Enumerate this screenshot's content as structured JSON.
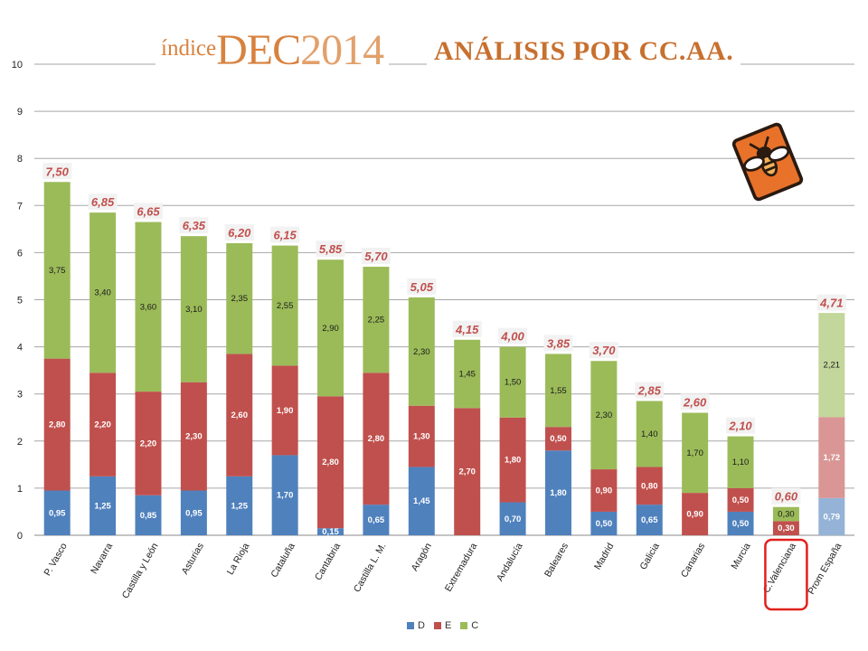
{
  "header": {
    "brand_prefix": "índice",
    "brand_main": "DEC",
    "brand_year": "2014",
    "title": "ANÁLISIS POR CC.AA."
  },
  "logo": {
    "icon": "bee-badge-icon",
    "color": "#e8722a"
  },
  "colors": {
    "D": "#4f81bd",
    "E": "#c0504d",
    "C": "#9bbb59",
    "D_light": "#95b3d7",
    "E_light": "#d99694",
    "C_light": "#c3d69b",
    "total_label": "#c0504d",
    "highlight": "#e2201b"
  },
  "chart_data": {
    "type": "bar",
    "stacked": true,
    "title": "ANÁLISIS POR CC.AA.",
    "xlabel": "",
    "ylabel": "",
    "ylim": [
      0,
      10
    ],
    "yticks": [
      "0",
      "1",
      "2",
      "3",
      "4",
      "5",
      "6",
      "7",
      "8",
      "9",
      "10"
    ],
    "grid": true,
    "legend_position": "bottom",
    "categories": [
      "P. Vasco",
      "Navarra",
      "Castilla y León",
      "Asturias",
      "La Rioja",
      "Cataluña",
      "Cantabria",
      "Castilla L. M.",
      "Aragón",
      "Extremadura",
      "Andalucía",
      "Baleares",
      "Madrid",
      "Galicia",
      "Canarias",
      "Murcia",
      "C.Valenciana",
      "Prom España"
    ],
    "series": [
      {
        "name": "D",
        "values": [
          0.95,
          1.25,
          0.85,
          0.95,
          1.25,
          1.7,
          0.15,
          0.65,
          1.45,
          0,
          0.7,
          1.8,
          0.5,
          0.65,
          0,
          0.5,
          0,
          0.79
        ],
        "labels": [
          "0,95",
          "1,25",
          "0,85",
          "0,95",
          "1,25",
          "1,70",
          "0,15",
          "0,65",
          "1,45",
          "",
          "0,70",
          "1,80",
          "0,50",
          "0,65",
          "",
          "0,50",
          "",
          "0,79"
        ]
      },
      {
        "name": "E",
        "values": [
          2.8,
          2.2,
          2.2,
          2.3,
          2.6,
          1.9,
          2.8,
          2.8,
          1.3,
          2.7,
          1.8,
          0.5,
          0.9,
          0.8,
          0.9,
          0.5,
          0.3,
          1.72
        ],
        "labels": [
          "2,80",
          "2,20",
          "2,20",
          "2,30",
          "2,60",
          "1,90",
          "2,80",
          "2,80",
          "1,30",
          "2,70",
          "1,80",
          "0,50",
          "0,90",
          "0,80",
          "0,90",
          "0,50",
          "0,30",
          "1,72"
        ]
      },
      {
        "name": "C",
        "values": [
          3.75,
          3.4,
          3.6,
          3.1,
          2.35,
          2.55,
          2.9,
          2.25,
          2.3,
          1.45,
          1.5,
          1.55,
          2.3,
          1.4,
          1.7,
          1.1,
          0.3,
          2.21
        ],
        "labels": [
          "3,75",
          "3,40",
          "3,60",
          "3,10",
          "2,35",
          "2,55",
          "2,90",
          "2,25",
          "2,30",
          "1,45",
          "1,50",
          "1,55",
          "2,30",
          "1,40",
          "1,70",
          "1,10",
          "0,30",
          "2,21"
        ]
      }
    ],
    "totals": [
      7.5,
      6.85,
      6.65,
      6.35,
      6.2,
      6.15,
      5.85,
      5.7,
      5.05,
      4.15,
      4.0,
      3.85,
      3.7,
      2.85,
      2.6,
      2.1,
      0.6,
      4.71
    ],
    "total_labels": [
      "7,50",
      "6,85",
      "6,65",
      "6,35",
      "6,20",
      "6,15",
      "5,85",
      "5,70",
      "5,05",
      "4,15",
      "4,00",
      "3,85",
      "3,70",
      "2,85",
      "2,60",
      "2,10",
      "0,60",
      "4,71"
    ],
    "highlighted_category": "C.Valenciana",
    "average_category": "Prom España"
  }
}
